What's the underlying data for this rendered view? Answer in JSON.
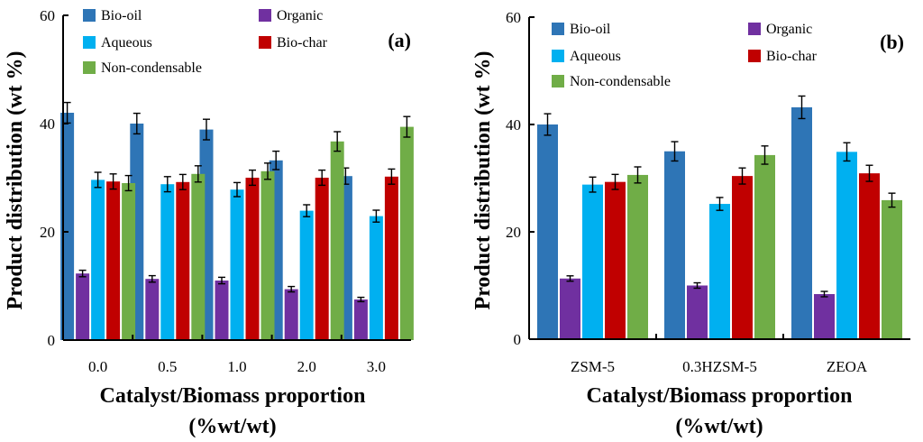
{
  "chart_data": [
    {
      "type": "bar",
      "panel_tag": "(a)",
      "xlabel_line1": "Catalyst/Biomass proportion",
      "xlabel_line2": "(%wt/wt)",
      "ylabel": "Product distribution (wt %)",
      "ylim": [
        0,
        60
      ],
      "yticks": [
        "0",
        "20",
        "40",
        "60"
      ],
      "categories": [
        "0.0",
        "0.5",
        "1.0",
        "2.0",
        "3.0"
      ],
      "legend_position": "top",
      "series": [
        {
          "name": "Bio-oil",
          "color": "#2E75B6",
          "values": [
            42.0,
            40.0,
            38.9,
            33.2,
            30.3
          ],
          "errors": [
            1.9,
            1.9,
            1.9,
            1.7,
            1.5
          ]
        },
        {
          "name": "Organic",
          "color": "#7030A0",
          "values": [
            12.3,
            11.3,
            11.0,
            9.4,
            7.5
          ],
          "errors": [
            0.6,
            0.6,
            0.6,
            0.5,
            0.4
          ]
        },
        {
          "name": "Aqueous",
          "color": "#00B0F0",
          "values": [
            29.6,
            28.8,
            27.8,
            23.9,
            22.9
          ],
          "errors": [
            1.4,
            1.4,
            1.3,
            1.1,
            1.1
          ]
        },
        {
          "name": "Bio-char",
          "color": "#C00000",
          "values": [
            29.3,
            29.2,
            30.0,
            30.0,
            30.2
          ],
          "errors": [
            1.4,
            1.4,
            1.4,
            1.4,
            1.4
          ]
        },
        {
          "name": "Non-condensable",
          "color": "#70AD47",
          "values": [
            29.0,
            30.7,
            31.2,
            36.7,
            39.4
          ],
          "errors": [
            1.4,
            1.5,
            1.5,
            1.8,
            1.9
          ]
        }
      ]
    },
    {
      "type": "bar",
      "panel_tag": "(b)",
      "xlabel_line1": "Catalyst/Biomass proportion",
      "xlabel_line2": "(%wt/wt)",
      "ylabel": "Product distribution (wt %)",
      "ylim": [
        0,
        60
      ],
      "yticks": [
        "0",
        "20",
        "40",
        "60"
      ],
      "categories": [
        "ZSM-5",
        "0.3HZSM-5",
        "ZEOA"
      ],
      "legend_position": "top",
      "series": [
        {
          "name": "Bio-oil",
          "color": "#2E75B6",
          "values": [
            40.0,
            35.0,
            43.2
          ],
          "errors": [
            2.0,
            1.8,
            2.1
          ]
        },
        {
          "name": "Organic",
          "color": "#7030A0",
          "values": [
            11.3,
            10.0,
            8.4
          ],
          "errors": [
            0.5,
            0.5,
            0.5
          ]
        },
        {
          "name": "Aqueous",
          "color": "#00B0F0",
          "values": [
            28.8,
            25.2,
            34.9
          ],
          "errors": [
            1.4,
            1.2,
            1.7
          ]
        },
        {
          "name": "Bio-char",
          "color": "#C00000",
          "values": [
            29.3,
            30.4,
            30.9
          ],
          "errors": [
            1.4,
            1.5,
            1.5
          ]
        },
        {
          "name": "Non-condensable",
          "color": "#70AD47",
          "values": [
            30.6,
            34.3,
            25.9
          ],
          "errors": [
            1.5,
            1.7,
            1.3
          ]
        }
      ]
    }
  ]
}
